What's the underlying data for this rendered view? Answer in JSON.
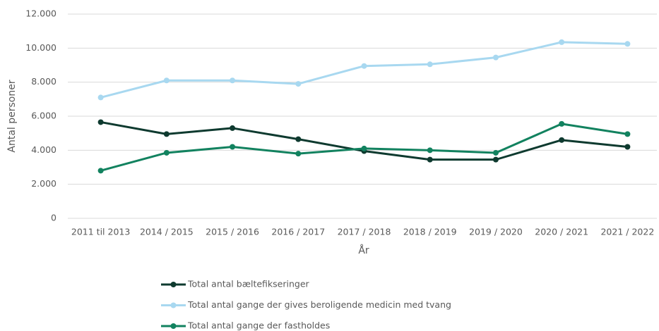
{
  "chart_data": {
    "type": "line",
    "x_label": "År",
    "y_label": "Antal personer",
    "categories": [
      "2011 til 2013",
      "2014 / 2015",
      "2015 / 2016",
      "2016 / 2017",
      "2017 / 2018",
      "2018 / 2019",
      "2019 / 2020",
      "2020 / 2021",
      "2021 / 2022"
    ],
    "series": [
      {
        "name": "Total antal bæltefikseringer",
        "color": "#0e3a2f",
        "values": [
          5650,
          4950,
          5300,
          4650,
          3950,
          3450,
          3450,
          4600,
          4200
        ]
      },
      {
        "name": "Total antal gange der gives beroligende medicin med tvang",
        "color": "#a8d8f0",
        "values": [
          7100,
          8100,
          8100,
          7900,
          8950,
          9050,
          9450,
          10350,
          10250
        ]
      },
      {
        "name": "Total antal gange der fastholdes",
        "color": "#12825f",
        "values": [
          2800,
          3850,
          4200,
          3800,
          4100,
          4000,
          3850,
          5550,
          4950
        ]
      }
    ],
    "ylim": [
      0,
      12000
    ],
    "yticks": [
      0,
      {
        "value": 2000,
        "label": "2.000"
      },
      {
        "value": 4000,
        "label": "4.000"
      },
      {
        "value": 6000,
        "label": "6.000"
      },
      {
        "value": 8000,
        "label": "8.000"
      },
      {
        "value": 10000,
        "label": "10.000"
      },
      {
        "value": 12000,
        "label": "12.000"
      }
    ],
    "grid": true,
    "legend": "bottom"
  }
}
